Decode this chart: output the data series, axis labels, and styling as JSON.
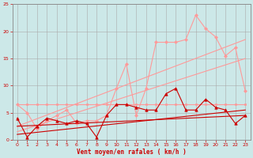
{
  "background_color": "#cce8e8",
  "grid_color": "#aaaaaa",
  "xlabel": "Vent moyen/en rafales ( km/h )",
  "xlabel_color": "#cc0000",
  "tick_color": "#cc0000",
  "spine_color": "#888888",
  "xlim": [
    -0.5,
    23.5
  ],
  "ylim": [
    0,
    25
  ],
  "yticks": [
    0,
    5,
    10,
    15,
    20,
    25
  ],
  "xticks": [
    0,
    1,
    2,
    3,
    4,
    5,
    6,
    7,
    8,
    9,
    10,
    11,
    12,
    13,
    14,
    15,
    16,
    17,
    18,
    19,
    20,
    21,
    22,
    23
  ],
  "pink_flat": {
    "x": [
      0,
      1,
      2,
      3,
      4,
      5,
      6,
      7,
      8,
      9,
      10,
      11,
      12,
      13,
      14,
      15,
      16,
      17,
      18,
      19,
      20,
      21,
      22,
      23
    ],
    "y": [
      6.5,
      6.5,
      6.5,
      6.5,
      6.5,
      6.5,
      6.5,
      6.5,
      6.5,
      6.5,
      6.5,
      6.5,
      6.5,
      6.5,
      6.5,
      6.5,
      6.5,
      6.5,
      6.5,
      6.5,
      6.5,
      6.5,
      6.5,
      6.5
    ],
    "color": "#ff9999",
    "linewidth": 0.8,
    "marker": "s",
    "markersize": 2.0
  },
  "pink_jagged": {
    "x": [
      0,
      1,
      2,
      3,
      4,
      5,
      6,
      7,
      8,
      9,
      10,
      11,
      12,
      13,
      14,
      15,
      16,
      17,
      18,
      19,
      20,
      21,
      22,
      23
    ],
    "y": [
      6.5,
      5.0,
      2.0,
      3.5,
      4.5,
      5.5,
      3.0,
      3.5,
      3.5,
      4.5,
      9.5,
      14.0,
      4.5,
      9.5,
      18.0,
      18.0,
      18.0,
      18.5,
      23.0,
      20.5,
      19.0,
      15.5,
      17.0,
      9.0
    ],
    "color": "#ff9999",
    "linewidth": 0.8,
    "marker": "D",
    "markersize": 2.0
  },
  "pink_diag1": {
    "x": [
      0,
      23
    ],
    "y": [
      1.5,
      15.0
    ],
    "color": "#ff9999",
    "linewidth": 0.8
  },
  "pink_diag2": {
    "x": [
      0,
      23
    ],
    "y": [
      2.5,
      18.5
    ],
    "color": "#ff9999",
    "linewidth": 0.8
  },
  "red_jagged": {
    "x": [
      0,
      1,
      2,
      3,
      4,
      5,
      6,
      7,
      8,
      9,
      10,
      11,
      12,
      13,
      14,
      15,
      16,
      17,
      18,
      19,
      20,
      21,
      22,
      23
    ],
    "y": [
      4.0,
      0.5,
      2.5,
      4.0,
      3.5,
      3.0,
      3.5,
      3.0,
      0.5,
      4.5,
      6.5,
      6.5,
      6.0,
      5.5,
      5.5,
      8.5,
      9.5,
      5.5,
      5.5,
      7.5,
      6.0,
      5.5,
      3.0,
      4.5
    ],
    "color": "#cc0000",
    "linewidth": 0.8,
    "marker": "^",
    "markersize": 2.5
  },
  "red_diag": {
    "x": [
      0,
      23
    ],
    "y": [
      1.0,
      5.5
    ],
    "color": "#cc0000",
    "linewidth": 0.8
  },
  "red_flat": {
    "x": [
      0,
      23
    ],
    "y": [
      2.5,
      4.5
    ],
    "color": "#cc0000",
    "linewidth": 0.8
  }
}
